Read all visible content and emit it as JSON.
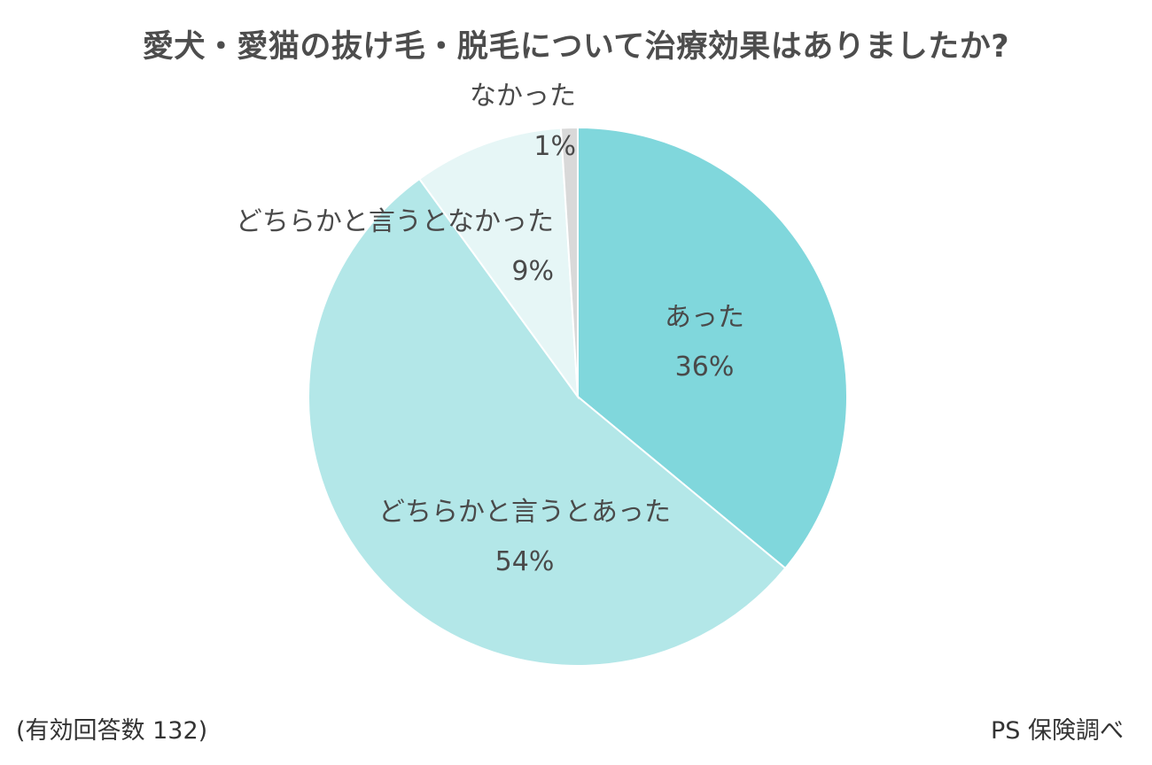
{
  "chart_data": {
    "type": "pie",
    "title": "愛犬・愛猫の抜け毛・脱毛について治療効果はありましたか?",
    "slices": [
      {
        "label": "あった",
        "value": 36,
        "value_label": "36%",
        "color": "#80d7dc"
      },
      {
        "label": "どちらかと言うとあった",
        "value": 54,
        "value_label": "54%",
        "color": "#b3e7e8"
      },
      {
        "label": "どちらかと言うとなかった",
        "value": 9,
        "value_label": "9%",
        "color": "#e6f6f6"
      },
      {
        "label": "なかった",
        "value": 1,
        "value_label": "1%",
        "color": "#d9d9d9"
      }
    ],
    "start_angle": "12 o'clock",
    "direction": "clockwise",
    "legend": "none (labels on slices)"
  },
  "footer": {
    "sample_note": "(有効回答数 132)",
    "source_note": "PS 保険調べ"
  }
}
